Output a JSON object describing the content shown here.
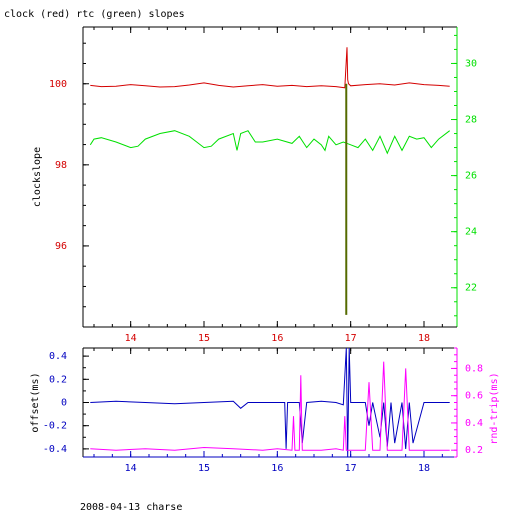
{
  "title": "clock (red) rtc (green) slopes",
  "footer": "2008-04-13 charse",
  "colors": {
    "axis": "#000000",
    "clock": "#d40000",
    "rtc": "#00e000",
    "spike": "#556b00",
    "offset": "#0000c0",
    "rndtrip": "#ff00ff"
  },
  "chart_data": [
    {
      "id": "top",
      "type": "line",
      "xlim": [
        13.35,
        18.45
      ],
      "xticks": [
        "14",
        "15",
        "16",
        "17",
        "18"
      ],
      "ylabel": "clockslope",
      "ylim_left": [
        94.0,
        101.4
      ],
      "yticks_left": [
        "96",
        "98",
        "100"
      ],
      "ylim_right": [
        20.6,
        31.3
      ],
      "yticks_right": [
        "22",
        "24",
        "26",
        "28",
        "30"
      ],
      "grid": false,
      "series": [
        {
          "color_key": "clock",
          "axis": "left",
          "x": [
            13.45,
            13.6,
            13.8,
            14.0,
            14.2,
            14.4,
            14.6,
            14.8,
            15.0,
            15.2,
            15.4,
            15.6,
            15.8,
            16.0,
            16.2,
            16.4,
            16.6,
            16.8,
            16.92,
            16.95,
            16.96,
            16.97,
            17.0,
            17.2,
            17.4,
            17.6,
            17.8,
            18.0,
            18.2,
            18.35
          ],
          "y": [
            99.96,
            99.93,
            99.94,
            99.98,
            99.95,
            99.92,
            99.93,
            99.97,
            100.02,
            99.96,
            99.92,
            99.95,
            99.98,
            99.94,
            99.96,
            99.93,
            99.95,
            99.93,
            99.9,
            100.9,
            100.1,
            100.0,
            99.95,
            99.98,
            100.0,
            99.97,
            100.02,
            99.98,
            99.96,
            99.94
          ]
        },
        {
          "color_key": "rtc",
          "axis": "right",
          "x": [
            13.45,
            13.5,
            13.6,
            13.8,
            14.0,
            14.1,
            14.2,
            14.4,
            14.6,
            14.8,
            14.9,
            15.0,
            15.1,
            15.2,
            15.4,
            15.45,
            15.5,
            15.6,
            15.7,
            15.8,
            16.0,
            16.2,
            16.3,
            16.4,
            16.5,
            16.6,
            16.65,
            16.7,
            16.8,
            16.9,
            17.0,
            17.1,
            17.2,
            17.3,
            17.4,
            17.5,
            17.6,
            17.7,
            17.8,
            17.9,
            18.0,
            18.1,
            18.2,
            18.35
          ],
          "y": [
            27.1,
            27.3,
            27.35,
            27.2,
            27.0,
            27.05,
            27.3,
            27.5,
            27.6,
            27.4,
            27.2,
            27.0,
            27.05,
            27.3,
            27.5,
            26.9,
            27.5,
            27.6,
            27.2,
            27.2,
            27.3,
            27.15,
            27.4,
            27.0,
            27.3,
            27.1,
            26.9,
            27.4,
            27.1,
            27.2,
            27.1,
            27.0,
            27.3,
            26.9,
            27.4,
            26.8,
            27.4,
            26.9,
            27.4,
            27.3,
            27.35,
            27.0,
            27.3,
            27.6
          ]
        }
      ],
      "spike": {
        "x": 16.94,
        "y_top": 100.0,
        "y_bottom": 94.3,
        "axis": "left"
      }
    },
    {
      "id": "bottom",
      "type": "line",
      "xlim": [
        13.35,
        18.45
      ],
      "xticks": [
        "14",
        "15",
        "16",
        "17",
        "18"
      ],
      "ylabel_left": "offset(ms)",
      "ylim_left": [
        -0.47,
        0.47
      ],
      "yticks_left": [
        "-0.4",
        "-0.2",
        "0",
        "0.2",
        "0.4"
      ],
      "ylabel_right": "rnd-trip(ms)",
      "ylim_right": [
        0.15,
        0.95
      ],
      "yticks_right": [
        "0.2",
        "0.4",
        "0.6",
        "0.8"
      ],
      "grid": false,
      "series": [
        {
          "color_key": "offset",
          "axis": "left",
          "x": [
            13.45,
            13.8,
            14.2,
            14.6,
            15.0,
            15.4,
            15.5,
            15.6,
            16.0,
            16.1,
            16.12,
            16.14,
            16.3,
            16.34,
            16.4,
            16.6,
            16.8,
            16.9,
            16.94,
            16.96,
            16.98,
            17.0,
            17.1,
            17.2,
            17.25,
            17.3,
            17.4,
            17.45,
            17.5,
            17.55,
            17.6,
            17.7,
            17.75,
            17.8,
            17.85,
            18.0,
            18.35
          ],
          "y": [
            0.0,
            0.01,
            0.0,
            -0.01,
            0.0,
            0.01,
            -0.05,
            0.0,
            0.0,
            0.0,
            -0.4,
            0.0,
            0.0,
            -0.35,
            0.0,
            0.01,
            0.0,
            -0.02,
            0.47,
            -0.47,
            0.47,
            0.0,
            0.0,
            0.0,
            -0.2,
            0.0,
            -0.3,
            0.0,
            -0.38,
            0.0,
            -0.35,
            0.0,
            -0.4,
            0.0,
            -0.35,
            0.0,
            0.0
          ]
        },
        {
          "color_key": "rndtrip",
          "axis": "right",
          "x": [
            13.45,
            13.8,
            14.2,
            14.6,
            15.0,
            15.4,
            15.8,
            16.0,
            16.2,
            16.22,
            16.24,
            16.3,
            16.32,
            16.34,
            16.5,
            16.6,
            16.8,
            16.9,
            16.92,
            16.94,
            17.1,
            17.2,
            17.25,
            17.3,
            17.4,
            17.45,
            17.5,
            17.55,
            17.7,
            17.75,
            17.8,
            18.0,
            18.35
          ],
          "y": [
            0.21,
            0.2,
            0.21,
            0.2,
            0.22,
            0.21,
            0.2,
            0.21,
            0.2,
            0.45,
            0.2,
            0.2,
            0.75,
            0.2,
            0.2,
            0.2,
            0.21,
            0.2,
            0.45,
            0.2,
            0.2,
            0.2,
            0.7,
            0.2,
            0.2,
            0.85,
            0.2,
            0.2,
            0.2,
            0.8,
            0.2,
            0.2,
            0.2
          ]
        }
      ]
    }
  ]
}
